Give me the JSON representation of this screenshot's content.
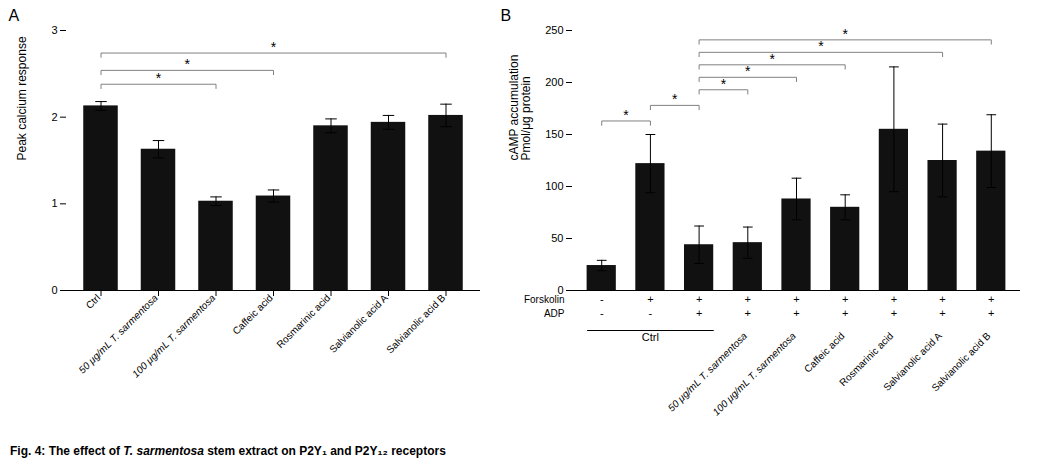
{
  "chart_data": [
    {
      "type": "bar",
      "title": "A",
      "categories": [
        "Ctrl",
        "50 μg/mL T. sarmentosa",
        "100 μg/mL T. sarmentosa",
        "Caffeic acid",
        "Rosmarinic acid",
        "Salvianolic acid A",
        "Salvianolic acid B"
      ],
      "values": [
        2.13,
        1.63,
        1.03,
        1.09,
        1.9,
        1.94,
        2.02
      ],
      "errors": [
        0.05,
        0.1,
        0.05,
        0.07,
        0.08,
        0.08,
        0.13
      ],
      "ylabel": "Peak calcium response",
      "ylim": [
        0,
        3
      ],
      "yticks": [
        0,
        1,
        2,
        3
      ],
      "color": "#111111",
      "significance_lines": [
        {
          "x1": 0,
          "x2": 2,
          "y": 2.38,
          "label": "*"
        },
        {
          "x1": 0,
          "x2": 3,
          "y": 2.54,
          "label": "*"
        },
        {
          "x1": 0,
          "x2": 6,
          "y": 2.74,
          "label": "*"
        }
      ]
    },
    {
      "type": "bar",
      "title": "B",
      "categories": [
        null,
        null,
        null,
        "50 μg/mL T. sarmentosa",
        "100 μg/mL T. sarmentosa",
        "Caffeic acid",
        "Rosmarinic acid",
        "Salvianolic acid A",
        "Salvianolic acid B"
      ],
      "values": [
        24,
        122,
        44,
        46,
        88,
        80,
        155,
        125,
        134
      ],
      "errors": [
        5,
        28,
        18,
        15,
        20,
        12,
        60,
        35,
        35
      ],
      "ylabel": "cAMP accumulation\nPmol/μg protein",
      "ylim": [
        0,
        250
      ],
      "yticks": [
        0,
        50,
        100,
        150,
        200,
        250
      ],
      "color": "#111111",
      "significance_lines": [
        {
          "x1": 0,
          "x2": 1,
          "y": 163,
          "label": "*"
        },
        {
          "x1": 1,
          "x2": 2,
          "y": 178,
          "label": "*"
        },
        {
          "x1": 2,
          "x2": 3,
          "y": 193,
          "label": "*"
        },
        {
          "x1": 2,
          "x2": 4,
          "y": 205,
          "label": "*"
        },
        {
          "x1": 2,
          "x2": 5,
          "y": 217,
          "label": "*"
        },
        {
          "x1": 2,
          "x2": 7,
          "y": 229,
          "label": "*"
        },
        {
          "x1": 2,
          "x2": 8,
          "y": 241,
          "label": "*"
        }
      ],
      "label_rows": [
        {
          "name": "Forskolin",
          "labels": [
            "-",
            "+",
            "+",
            "+",
            "+",
            "+",
            "+",
            "+",
            "+"
          ]
        },
        {
          "name": "ADP",
          "labels": [
            "-",
            "-",
            "+",
            "+",
            "+",
            "+",
            "+",
            "+",
            "+"
          ]
        }
      ],
      "group_label": "Ctrl"
    }
  ],
  "caption": [
    "Fig. 4: The effect of ",
    "T. sarmentosa",
    " stem extract on P2Y₁ and P2Y₁₂ receptors"
  ]
}
